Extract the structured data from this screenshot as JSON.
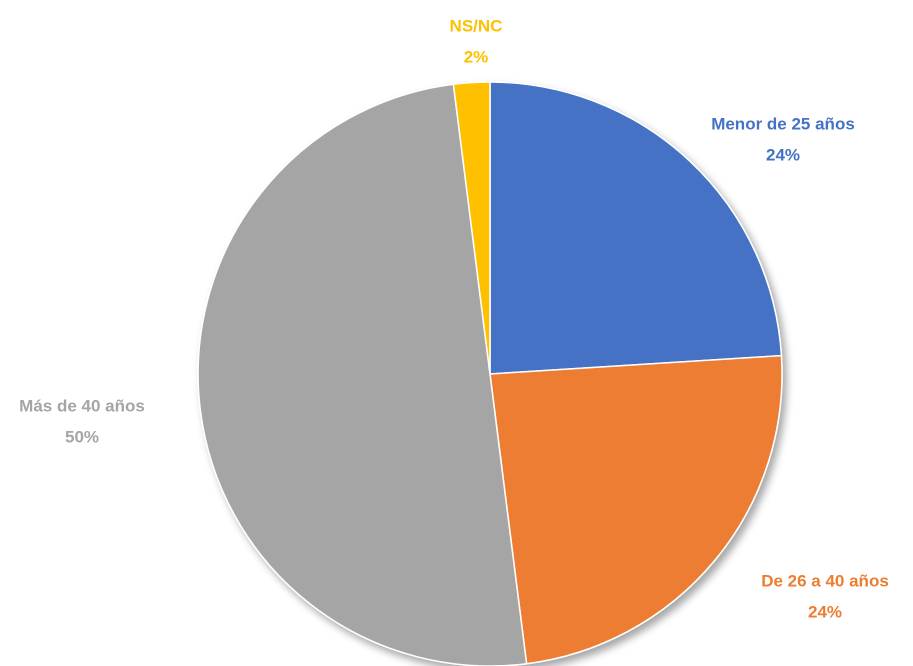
{
  "chart_data": {
    "type": "pie",
    "categories": [
      "Menor de 25 años",
      "De 26 a 40 años",
      "Más de 40 años",
      "NS/NC"
    ],
    "values": [
      24,
      24,
      50,
      2
    ],
    "value_labels": [
      "24%",
      "24%",
      "50%",
      "2%"
    ],
    "colors": [
      "#4472c4",
      "#ed7d31",
      "#a5a5a5",
      "#ffc000"
    ]
  }
}
